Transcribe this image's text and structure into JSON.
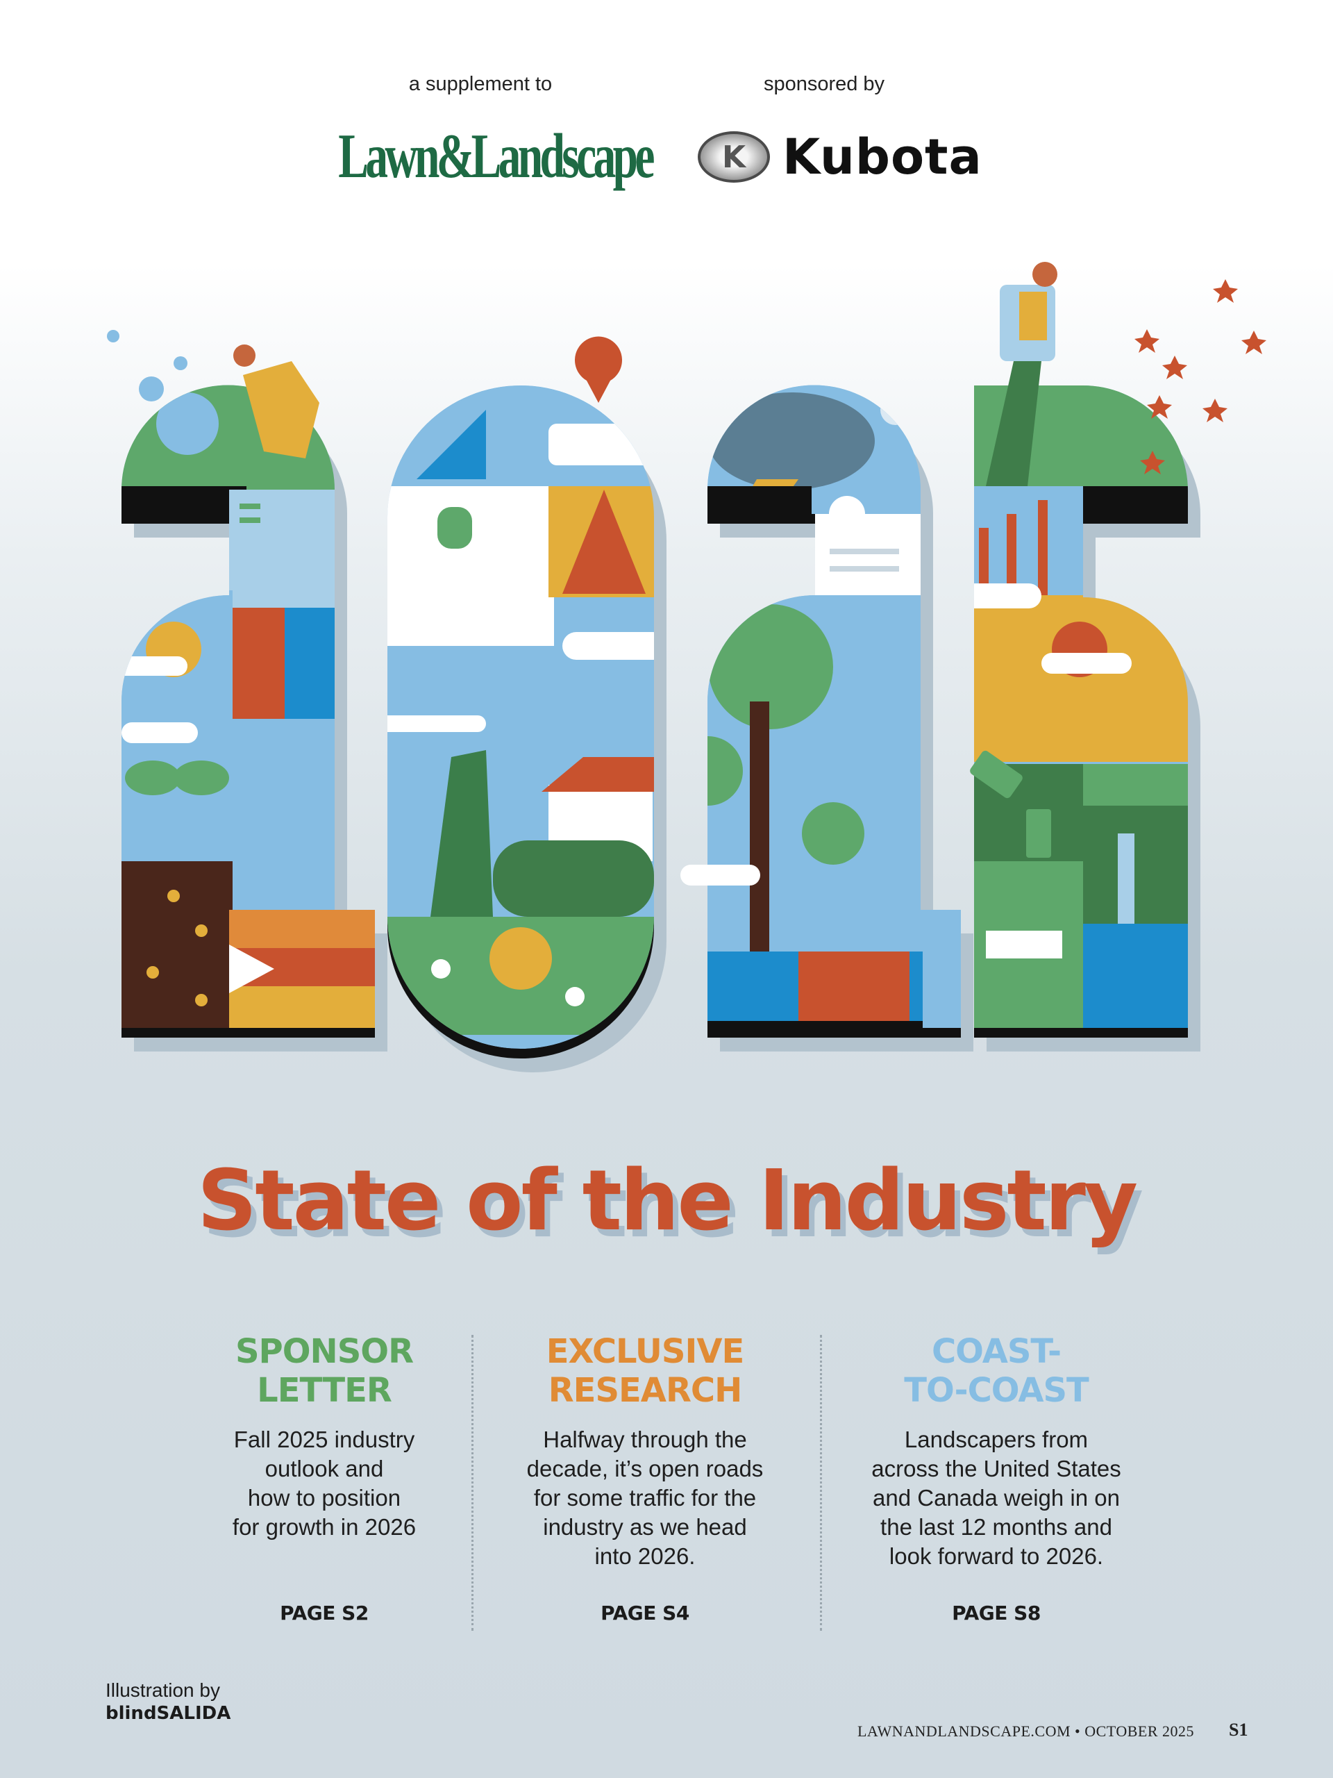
{
  "header": {
    "supplement_label": "a supplement to",
    "sponsor_label": "sponsored by",
    "publication_logo": "Lawn&Landscape",
    "sponsor_logo": "Kubota",
    "sponsor_emblem": "K"
  },
  "illustration": {
    "lettering": "2025",
    "palette": {
      "sky": "#86bde3",
      "green": "#5ea86b",
      "yellow": "#e3ae3b",
      "orange": "#e08a3a",
      "red": "#c8522e",
      "brown": "#4a261b",
      "blue": "#1c8ccc",
      "slate": "#5b7e93",
      "black": "#111111",
      "shadow": "#b3c3ce"
    }
  },
  "title": "State of the Industry",
  "columns": [
    {
      "heading_1": "SPONSOR",
      "heading_2": "LETTER",
      "color": "#5ea65f",
      "body": [
        "Fall 2025 industry",
        "outlook and",
        "how to position",
        "for growth in 2026"
      ],
      "page": "PAGE S2"
    },
    {
      "heading_1": "EXCLUSIVE",
      "heading_2": "RESEARCH",
      "color": "#e08b35",
      "body": [
        "Halfway through the",
        "decade, it’s open roads",
        "for some traffic for the",
        "industry as we head",
        "into 2026."
      ],
      "page": "PAGE S4"
    },
    {
      "heading_1": "COAST-",
      "heading_2": "TO-COAST",
      "color": "#86bde3",
      "body": [
        "Landscapers from",
        "across the United States",
        "and Canada weigh in on",
        "the last 12 months and",
        "look forward to 2026."
      ],
      "page": "PAGE S8"
    }
  ],
  "credit": {
    "label": "Illustration by",
    "artist": "blindSALIDA"
  },
  "footer": {
    "folio": "LAWNANDLANDSCAPE.COM • OCTOBER 2025",
    "page_number": "S1"
  }
}
